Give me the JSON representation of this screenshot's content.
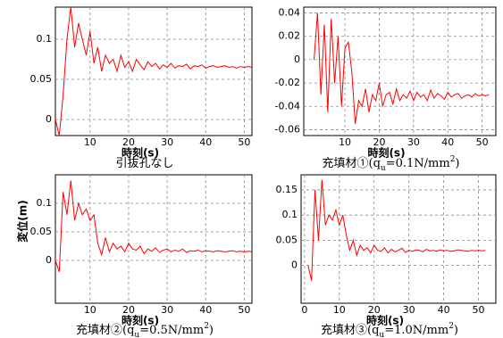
{
  "chart_data": [
    {
      "type": "line",
      "xlabel": "時刻(s)",
      "caption": [
        {
          "text": "引抜孔なし"
        }
      ],
      "x": [
        1,
        2,
        3,
        4,
        5,
        6,
        7,
        8,
        9,
        10,
        11,
        12,
        13,
        14,
        15,
        16,
        17,
        18,
        19,
        20,
        21,
        22,
        23,
        24,
        25,
        26,
        27,
        28,
        29,
        30,
        31,
        32,
        33,
        34,
        35,
        36,
        37,
        38,
        39,
        40,
        41,
        42,
        43,
        44,
        45,
        46,
        47,
        48,
        49,
        50,
        51,
        52
      ],
      "series": [
        {
          "color": "#ff0000",
          "values": [
            0.0,
            -0.02,
            0.03,
            0.1,
            0.14,
            0.09,
            0.12,
            0.1,
            0.08,
            0.11,
            0.07,
            0.09,
            0.06,
            0.08,
            0.07,
            0.075,
            0.06,
            0.08,
            0.065,
            0.072,
            0.06,
            0.075,
            0.068,
            0.062,
            0.072,
            0.066,
            0.07,
            0.063,
            0.068,
            0.065,
            0.07,
            0.064,
            0.067,
            0.066,
            0.069,
            0.063,
            0.067,
            0.066,
            0.068,
            0.064,
            0.066,
            0.067,
            0.065,
            0.066,
            0.067,
            0.065,
            0.066,
            0.064,
            0.066,
            0.065,
            0.066,
            0.065
          ]
        }
      ],
      "xlim": [
        1,
        52
      ],
      "xticks": [
        10,
        20,
        30,
        40,
        50
      ],
      "ylim": [
        -0.02,
        0.14
      ],
      "yticks": [
        0,
        0.05,
        0.1
      ],
      "grid": true
    },
    {
      "type": "line",
      "xlabel": "時刻(s)",
      "caption": [
        {
          "text": "充填材①(q"
        },
        {
          "text": "u",
          "shift": "sub"
        },
        {
          "text": "=0.1N/mm"
        },
        {
          "text": "2",
          "shift": "sup"
        },
        {
          "text": ")"
        }
      ],
      "x": [
        1,
        2,
        3,
        4,
        5,
        6,
        7,
        8,
        9,
        10,
        11,
        12,
        13,
        14,
        15,
        16,
        17,
        18,
        19,
        20,
        21,
        22,
        23,
        24,
        25,
        26,
        27,
        28,
        29,
        30,
        31,
        32,
        33,
        34,
        35,
        36,
        37,
        38,
        39,
        40,
        41,
        42,
        43,
        44,
        45,
        46,
        47,
        48,
        49,
        50,
        51,
        52
      ],
      "series": [
        {
          "color": "#ff0000",
          "values": [
            0.0,
            0.04,
            -0.03,
            0.03,
            -0.045,
            0.035,
            -0.02,
            0.02,
            -0.04,
            0.01,
            0.015,
            -0.01,
            -0.055,
            -0.035,
            -0.04,
            -0.025,
            -0.045,
            -0.03,
            -0.035,
            -0.02,
            -0.04,
            -0.03,
            -0.028,
            -0.038,
            -0.025,
            -0.035,
            -0.03,
            -0.033,
            -0.027,
            -0.035,
            -0.028,
            -0.032,
            -0.03,
            -0.035,
            -0.026,
            -0.033,
            -0.029,
            -0.031,
            -0.034,
            -0.028,
            -0.032,
            -0.03,
            -0.029,
            -0.033,
            -0.031,
            -0.03,
            -0.032,
            -0.029,
            -0.031,
            -0.03,
            -0.031,
            -0.03
          ]
        }
      ],
      "xlim": [
        -2,
        54
      ],
      "xticks": [
        10,
        20,
        30,
        40,
        50
      ],
      "ylim": [
        -0.065,
        0.045
      ],
      "yticks": [
        0.04,
        0.02,
        0,
        -0.02,
        -0.04,
        -0.06
      ],
      "grid": true
    },
    {
      "type": "line",
      "xlabel": "時刻(s)",
      "ylabel": "変位(m)",
      "caption": [
        {
          "text": "充填材②(q"
        },
        {
          "text": "u",
          "shift": "sub"
        },
        {
          "text": "=0.5N/mm"
        },
        {
          "text": "2",
          "shift": "sup"
        },
        {
          "text": ")"
        }
      ],
      "x": [
        1,
        2,
        3,
        4,
        5,
        6,
        7,
        8,
        9,
        10,
        11,
        12,
        13,
        14,
        15,
        16,
        17,
        18,
        19,
        20,
        21,
        22,
        23,
        24,
        25,
        26,
        27,
        28,
        29,
        30,
        31,
        32,
        33,
        34,
        35,
        36,
        37,
        38,
        39,
        40,
        41,
        42,
        43,
        44,
        45,
        46,
        47,
        48,
        49,
        50,
        51,
        52
      ],
      "series": [
        {
          "color": "#ff0000",
          "values": [
            0.0,
            -0.02,
            0.12,
            0.08,
            0.14,
            0.07,
            0.1,
            0.08,
            0.09,
            0.07,
            0.08,
            0.03,
            0.01,
            0.04,
            0.015,
            0.03,
            0.02,
            0.025,
            0.015,
            0.03,
            0.02,
            0.018,
            0.025,
            0.012,
            0.02,
            0.016,
            0.022,
            0.014,
            0.018,
            0.02,
            0.015,
            0.018,
            0.016,
            0.02,
            0.014,
            0.017,
            0.016,
            0.018,
            0.015,
            0.017,
            0.016,
            0.015,
            0.017,
            0.016,
            0.015,
            0.016,
            0.017,
            0.015,
            0.016,
            0.015,
            0.016,
            0.015
          ]
        }
      ],
      "xlim": [
        1,
        52
      ],
      "xticks": [
        10,
        20,
        30,
        40,
        50
      ],
      "ylim": [
        -0.075,
        0.15
      ],
      "yticks": [
        0,
        0.05,
        0.1
      ],
      "grid": true
    },
    {
      "type": "line",
      "xlabel": "時刻(s)",
      "caption": [
        {
          "text": "充填材③(q"
        },
        {
          "text": "u",
          "shift": "sub"
        },
        {
          "text": "=1.0N/mm"
        },
        {
          "text": "2",
          "shift": "sup"
        },
        {
          "text": ")"
        }
      ],
      "x": [
        1,
        2,
        3,
        4,
        5,
        6,
        7,
        8,
        9,
        10,
        11,
        12,
        13,
        14,
        15,
        16,
        17,
        18,
        19,
        20,
        21,
        22,
        23,
        24,
        25,
        26,
        27,
        28,
        29,
        30,
        31,
        32,
        33,
        34,
        35,
        36,
        37,
        38,
        39,
        40,
        41,
        42,
        43,
        44,
        45,
        46,
        47,
        48,
        49,
        50,
        51,
        52
      ],
      "series": [
        {
          "color": "#ff0000",
          "values": [
            0.0,
            -0.03,
            0.15,
            0.05,
            0.17,
            0.08,
            0.1,
            0.09,
            0.11,
            0.08,
            0.1,
            0.06,
            0.03,
            0.05,
            0.02,
            0.04,
            0.03,
            0.035,
            0.025,
            0.04,
            0.03,
            0.028,
            0.035,
            0.025,
            0.032,
            0.027,
            0.03,
            0.034,
            0.026,
            0.03,
            0.028,
            0.031,
            0.03,
            0.027,
            0.032,
            0.029,
            0.03,
            0.028,
            0.031,
            0.029,
            0.03,
            0.028,
            0.029,
            0.031,
            0.03,
            0.029,
            0.028,
            0.03,
            0.029,
            0.03,
            0.029,
            0.03
          ]
        }
      ],
      "xlim": [
        -1,
        55
      ],
      "xticks": [
        0,
        10,
        20,
        30,
        40,
        50
      ],
      "ylim": [
        -0.075,
        0.18
      ],
      "yticks": [
        0,
        0.05,
        0.1,
        0.15
      ],
      "grid": true
    }
  ]
}
